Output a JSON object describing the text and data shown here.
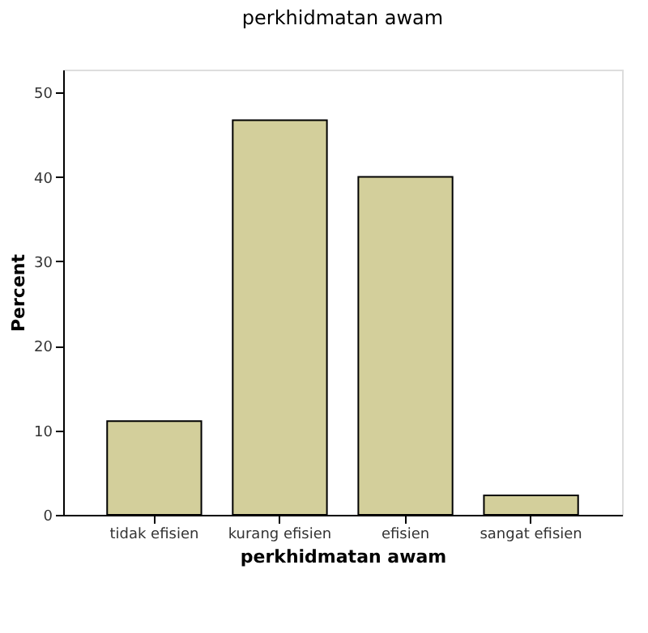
{
  "chart_data": {
    "type": "bar",
    "title": "perkhidmatan awam",
    "xlabel": "perkhidmatan awam",
    "ylabel": "Percent",
    "categories": [
      "tidak efisien",
      "kurang efisien",
      "efisien",
      "sangat efisien"
    ],
    "values": [
      11.1,
      46.7,
      40.0,
      2.3
    ],
    "color": "#d3cf9b",
    "ylim": [
      0,
      52.7
    ],
    "yticks": [
      0,
      10,
      20,
      30,
      40,
      50
    ],
    "grid": false
  }
}
